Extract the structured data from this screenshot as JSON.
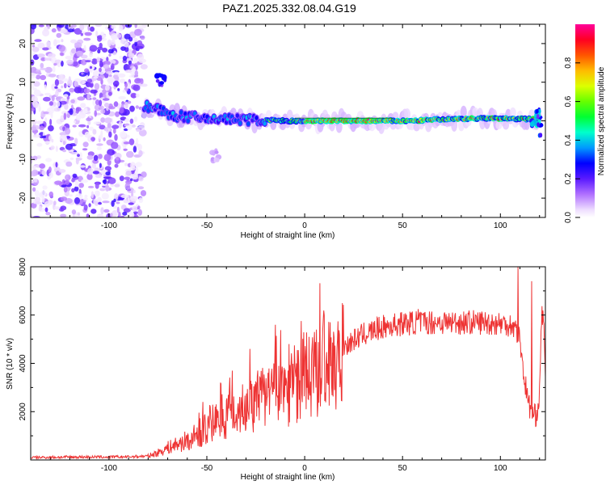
{
  "title": "PAZ1.2025.332.08.04.G19",
  "chart_data": [
    {
      "type": "heatmap",
      "xlabel": "Height of straight line (km)",
      "ylabel": "Frequency (Hz)",
      "xlim": [
        -140,
        123
      ],
      "ylim": [
        -25,
        25
      ],
      "xticks": [
        -100,
        -50,
        0,
        50,
        100
      ],
      "yticks": [
        -20,
        -10,
        0,
        10,
        20
      ],
      "colorbar": {
        "label": "Normalized spectral amplitude",
        "range": [
          0,
          1
        ],
        "ticks": [
          0.0,
          0.2,
          0.4,
          0.6,
          0.8
        ]
      },
      "ridge": [
        [
          -82,
          4
        ],
        [
          -75,
          3
        ],
        [
          -70,
          1.5
        ],
        [
          -60,
          1
        ],
        [
          -50,
          0.5
        ],
        [
          -40,
          0.5
        ],
        [
          -30,
          0.3
        ],
        [
          -20,
          0.2
        ],
        [
          -10,
          0
        ],
        [
          0,
          -0.2
        ],
        [
          10,
          0
        ],
        [
          25,
          0
        ],
        [
          40,
          0
        ],
        [
          55,
          0
        ],
        [
          70,
          0.4
        ],
        [
          85,
          0.6
        ],
        [
          100,
          0.6
        ],
        [
          112,
          0.5
        ]
      ],
      "features": [
        {
          "name": "noise-region",
          "x_range": [
            -140,
            -82
          ],
          "y_range": [
            -25,
            25
          ],
          "amplitude": 0.05
        },
        {
          "name": "branch-upper",
          "x": -73,
          "y": 10.5,
          "amplitude": 0.25
        },
        {
          "name": "branch-lower",
          "x": -45,
          "y": -9,
          "amplitude": 0.08
        },
        {
          "name": "signal-end",
          "x": 118,
          "y": 0,
          "amplitude": 0.4
        }
      ]
    },
    {
      "type": "line",
      "xlabel": "Height of straight line (km)",
      "ylabel": "SNR (10 * v/v)",
      "xlim": [
        -140,
        123
      ],
      "ylim": [
        0,
        8000
      ],
      "xticks": [
        -100,
        -50,
        0,
        50,
        100
      ],
      "yticks": [
        2000,
        4000,
        6000,
        8000
      ],
      "color": "#ee3333",
      "envelope": [
        [
          -140,
          100
        ],
        [
          -120,
          120
        ],
        [
          -100,
          120
        ],
        [
          -90,
          130
        ],
        [
          -80,
          160
        ],
        [
          -75,
          300
        ],
        [
          -70,
          500
        ],
        [
          -60,
          800
        ],
        [
          -50,
          1300
        ],
        [
          -45,
          1700
        ],
        [
          -40,
          1900
        ],
        [
          -30,
          2200
        ],
        [
          -20,
          2600
        ],
        [
          -10,
          3000
        ],
        [
          0,
          3400
        ],
        [
          10,
          4000
        ],
        [
          20,
          4700
        ],
        [
          30,
          5200
        ],
        [
          40,
          5500
        ],
        [
          50,
          5650
        ],
        [
          60,
          5700
        ],
        [
          70,
          5700
        ],
        [
          80,
          5700
        ],
        [
          90,
          5700
        ],
        [
          100,
          5650
        ],
        [
          106,
          5600
        ],
        [
          108,
          5400
        ],
        [
          110,
          5000
        ],
        [
          112,
          3500
        ],
        [
          114,
          2500
        ],
        [
          116,
          1900
        ],
        [
          118,
          1800
        ],
        [
          120,
          2600
        ],
        [
          121,
          6000
        ],
        [
          122,
          6000
        ],
        [
          123,
          3000
        ]
      ],
      "spikes": [
        {
          "x": -52,
          "y": 2400
        },
        {
          "x": -43,
          "y": 3200
        },
        {
          "x": -37,
          "y": 3700
        },
        {
          "x": -28,
          "y": 4600
        },
        {
          "x": -15,
          "y": 5600
        },
        {
          "x": -8,
          "y": 4800
        },
        {
          "x": 5,
          "y": 5300
        },
        {
          "x": 13,
          "y": 5700
        },
        {
          "x": 58,
          "y": 6250
        },
        {
          "x": 109,
          "y": 8000
        },
        {
          "x": 116,
          "y": 7400
        }
      ]
    }
  ]
}
